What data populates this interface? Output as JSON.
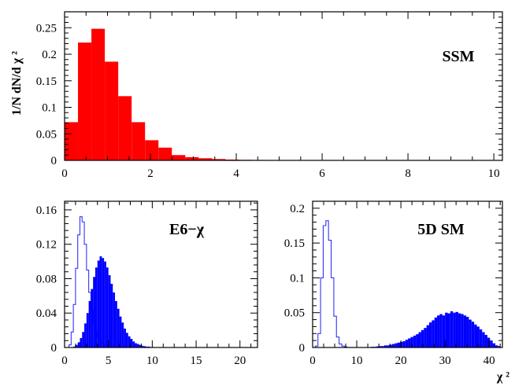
{
  "chart_data": [
    {
      "type": "bar",
      "label": "SSM",
      "ylabel": "1/N dN/d χ ²",
      "xlim": [
        0,
        10.2
      ],
      "ylim": [
        0,
        0.28
      ],
      "xticks": [
        "0",
        "2",
        "4",
        "6",
        "8",
        "10"
      ],
      "yticks": [
        "0",
        "0.05",
        "0.1",
        "0.15",
        "0.2",
        "0.25"
      ],
      "bin_width": 0.3125,
      "series": [
        {
          "style": "filled",
          "color": "#ff0000",
          "values": [
            0.072,
            0.222,
            0.248,
            0.186,
            0.121,
            0.072,
            0.038,
            0.024,
            0.01,
            0.006,
            0.004,
            0.0025,
            0.0015,
            0.001,
            0.0008,
            0.0005,
            0.0004,
            0.0003,
            0.0002,
            0.0002,
            0.0001,
            0.0001,
            0.0001,
            0.0001,
            0.0001,
            0.0001,
            0.0001,
            0.0001,
            0.0001,
            0.0001,
            0.0001,
            0.0001
          ]
        }
      ]
    },
    {
      "type": "bar",
      "label": "E6−χ",
      "xlim": [
        0,
        22
      ],
      "ylim": [
        0,
        0.17
      ],
      "xticks": [
        "0",
        "5",
        "10",
        "15",
        "20"
      ],
      "yticks": [
        "0",
        "0.04",
        "0.08",
        "0.12",
        "0.16"
      ],
      "bin_width": 0.25,
      "series": [
        {
          "style": "outline",
          "color": "#3333ff",
          "values": [
            0,
            0,
            0.003,
            0.018,
            0.05,
            0.092,
            0.131,
            0.152,
            0.146,
            0.12,
            0.09,
            0.064,
            0.043,
            0.028,
            0.018,
            0.011,
            0.007,
            0.004,
            0.003,
            0.002,
            0.001
          ]
        },
        {
          "style": "filled",
          "color": "#0000ff",
          "values": [
            0,
            0,
            0,
            0,
            0.001,
            0.003,
            0.006,
            0.011,
            0.018,
            0.028,
            0.04,
            0.054,
            0.068,
            0.082,
            0.093,
            0.101,
            0.106,
            0.104,
            0.1,
            0.093,
            0.084,
            0.074,
            0.064,
            0.054,
            0.045,
            0.036,
            0.029,
            0.022,
            0.017,
            0.013,
            0.01,
            0.007,
            0.005,
            0.004,
            0.003,
            0.002,
            0.0015,
            0.001,
            0.001,
            0.0005,
            0.0005
          ]
        }
      ]
    },
    {
      "type": "bar",
      "label": "5D SM",
      "xlabel": "χ ²",
      "xlim": [
        0,
        43
      ],
      "ylim": [
        0,
        0.21
      ],
      "xticks": [
        "0",
        "10",
        "20",
        "30",
        "40"
      ],
      "yticks": [
        "0",
        "0.05",
        "0.1",
        "0.15",
        "0.2"
      ],
      "bin_width": 0.6,
      "series": [
        {
          "style": "outline",
          "color": "#3333ff",
          "values": [
            0,
            0.002,
            0.02,
            0.1,
            0.175,
            0.182,
            0.154,
            0.1,
            0.045,
            0.015,
            0.005,
            0.002,
            0.001
          ]
        },
        {
          "style": "filled",
          "color": "#0000ff",
          "bin_width": 0.6,
          "x_start": 12,
          "values": [
            0.0005,
            0.0005,
            0.001,
            0.001,
            0.0015,
            0.002,
            0.002,
            0.003,
            0.003,
            0.004,
            0.005,
            0.006,
            0.007,
            0.008,
            0.009,
            0.011,
            0.013,
            0.015,
            0.017,
            0.019,
            0.022,
            0.025,
            0.028,
            0.032,
            0.036,
            0.039,
            0.043,
            0.046,
            0.048,
            0.046,
            0.05,
            0.049,
            0.052,
            0.05,
            0.051,
            0.049,
            0.048,
            0.046,
            0.044,
            0.04,
            0.037,
            0.033,
            0.03,
            0.026,
            0.022,
            0.018,
            0.014,
            0.01,
            0.006,
            0.003,
            0.002
          ]
        }
      ]
    }
  ]
}
